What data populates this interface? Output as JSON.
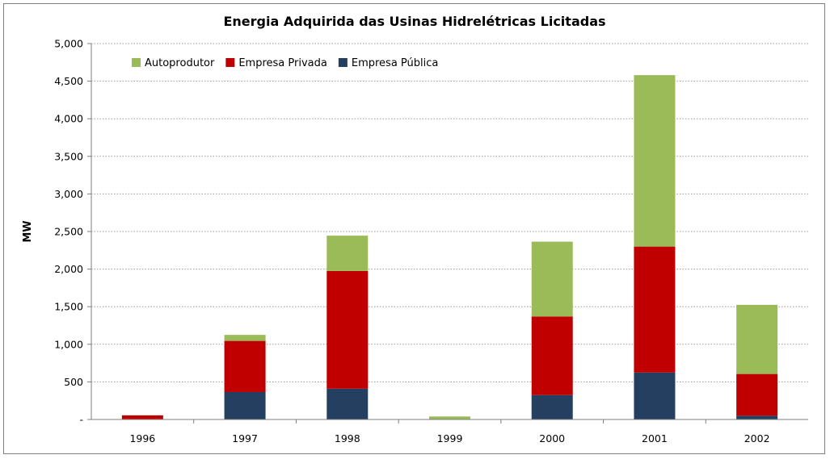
{
  "chart_data": {
    "type": "bar",
    "stacked": true,
    "title": "Energia Adquirida das Usinas Hidrelétricas Licitadas",
    "ylabel": "MW",
    "xlabel": "",
    "ylim": [
      0,
      5000
    ],
    "yticks": [
      0,
      500,
      1000,
      1500,
      2000,
      2500,
      3000,
      3500,
      4000,
      4500,
      5000
    ],
    "ytick_labels": [
      "-",
      "500",
      "1,000",
      "1,500",
      "2,000",
      "2,500",
      "3,000",
      "3,500",
      "4,000",
      "4,500",
      "5,000"
    ],
    "grid": true,
    "legend_position": "top-left",
    "categories": [
      "1996",
      "1997",
      "1998",
      "1999",
      "2000",
      "2001",
      "2002"
    ],
    "series": [
      {
        "name": "Empresa Pública",
        "color": "#243f60",
        "values": [
          0,
          365,
          410,
          0,
          325,
          625,
          50
        ]
      },
      {
        "name": "Empresa Privada",
        "color": "#c00000",
        "values": [
          55,
          680,
          1565,
          0,
          1045,
          1675,
          555
        ]
      },
      {
        "name": "Autoprodutor",
        "color": "#9bbb59",
        "values": [
          0,
          80,
          470,
          40,
          995,
          2280,
          920
        ]
      }
    ],
    "legend_order": [
      "Autoprodutor",
      "Empresa Privada",
      "Empresa Pública"
    ]
  }
}
